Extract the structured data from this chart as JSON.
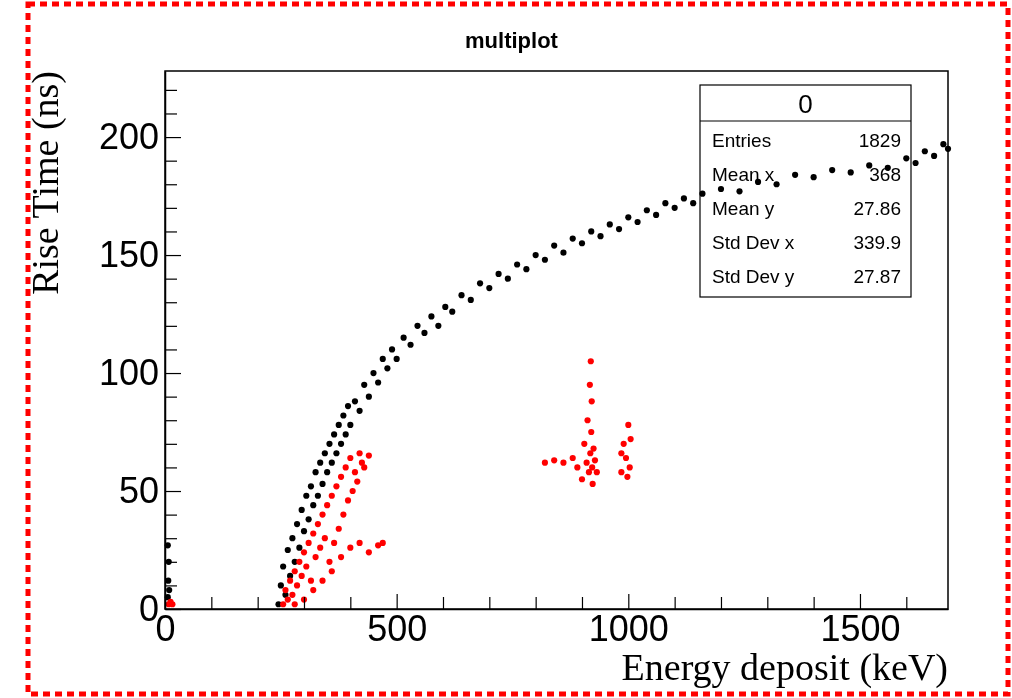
{
  "chart_data": {
    "type": "scatter",
    "title": "multiplot",
    "xlabel": "Energy deposit (keV)",
    "ylabel": "Rise Time (ns)",
    "xlim": [
      0,
      1690
    ],
    "ylim": [
      0,
      228
    ],
    "xticks": [
      0,
      {
        "value": 100,
        "label": null
      },
      {
        "value": 200,
        "label": null
      },
      {
        "value": 300,
        "label": null
      },
      {
        "value": 400,
        "label": null
      },
      500,
      {
        "value": 600,
        "label": null
      },
      {
        "value": 700,
        "label": null
      },
      {
        "value": 800,
        "label": null
      },
      {
        "value": 900,
        "label": null
      },
      1000,
      {
        "value": 1100,
        "label": null
      },
      {
        "value": 1200,
        "label": null
      },
      {
        "value": 1300,
        "label": null
      },
      {
        "value": 1400,
        "label": null
      },
      1500,
      {
        "value": 1600,
        "label": null
      }
    ],
    "yticks": [
      0,
      {
        "value": 10,
        "label": null
      },
      {
        "value": 20,
        "label": null
      },
      {
        "value": 30,
        "label": null
      },
      {
        "value": 40,
        "label": null
      },
      50,
      {
        "value": 60,
        "label": null
      },
      {
        "value": 70,
        "label": null
      },
      {
        "value": 80,
        "label": null
      },
      {
        "value": 90,
        "label": null
      },
      100,
      {
        "value": 110,
        "label": null
      },
      {
        "value": 120,
        "label": null
      },
      {
        "value": 130,
        "label": null
      },
      {
        "value": 140,
        "label": null
      },
      150,
      {
        "value": 160,
        "label": null
      },
      {
        "value": 170,
        "label": null
      },
      {
        "value": 180,
        "label": null
      },
      {
        "value": 190,
        "label": null
      },
      200,
      {
        "value": 210,
        "label": null
      },
      {
        "value": 220,
        "label": null
      }
    ],
    "grid": false,
    "marker": "circle",
    "annotations": [
      "0",
      "Entries",
      "1829",
      "Mean x",
      "368",
      "Mean y",
      "27.86",
      "Std Dev x",
      "339.9",
      "Std Dev y",
      "27.87"
    ],
    "series": [
      {
        "color": "#000000",
        "x": [
          6,
          7,
          8,
          6,
          9,
          245,
          250,
          255,
          260,
          265,
          270,
          275,
          280,
          285,
          290,
          295,
          300,
          305,
          310,
          315,
          320,
          325,
          330,
          335,
          340,
          345,
          350,
          355,
          360,
          365,
          370,
          375,
          380,
          385,
          390,
          395,
          400,
          410,
          420,
          430,
          440,
          450,
          460,
          470,
          480,
          490,
          500,
          515,
          530,
          545,
          560,
          575,
          590,
          605,
          620,
          640,
          660,
          680,
          700,
          720,
          740,
          760,
          780,
          800,
          820,
          840,
          860,
          880,
          900,
          920,
          940,
          960,
          980,
          1000,
          1020,
          1040,
          1060,
          1080,
          1100,
          1120,
          1140,
          1160,
          1200,
          1240,
          1280,
          1320,
          1360,
          1400,
          1440,
          1480,
          1520,
          1560,
          1600,
          1620,
          1640,
          1660,
          1680,
          1690
        ],
        "values": [
          5,
          12,
          20,
          27,
          8,
          2,
          10,
          18,
          6,
          25,
          14,
          30,
          20,
          36,
          26,
          42,
          33,
          48,
          38,
          52,
          44,
          58,
          48,
          62,
          53,
          66,
          58,
          70,
          62,
          74,
          66,
          78,
          70,
          82,
          74,
          86,
          78,
          88,
          84,
          95,
          90,
          100,
          96,
          106,
          102,
          110,
          106,
          115,
          112,
          120,
          117,
          124,
          120,
          128,
          126,
          133,
          131,
          138,
          136,
          142,
          140,
          146,
          144,
          150,
          148,
          154,
          151,
          157,
          155,
          160,
          158,
          163,
          161,
          166,
          164,
          169,
          167,
          172,
          170,
          174,
          172,
          176,
          178,
          177,
          181,
          180,
          184,
          183,
          186,
          185,
          188,
          187,
          191,
          189,
          194,
          192,
          197,
          195
        ]
      },
      {
        "color": "#ff0000",
        "x": [
          8,
          12,
          16,
          255,
          260,
          265,
          270,
          275,
          280,
          285,
          290,
          295,
          300,
          305,
          310,
          315,
          320,
          325,
          330,
          335,
          340,
          345,
          350,
          355,
          360,
          365,
          370,
          375,
          380,
          385,
          390,
          395,
          400,
          405,
          410,
          415,
          420,
          425,
          430,
          440,
          360,
          380,
          400,
          420,
          440,
          460,
          470,
          340,
          320,
          300,
          280,
          890,
          900,
          905,
          910,
          912,
          915,
          917,
          918,
          919,
          920,
          921,
          922,
          923,
          925,
          928,
          932,
          880,
          860,
          840,
          820,
          985,
          990,
          995,
          1000,
          1003,
          1005,
          985,
          998
        ],
        "values": [
          2,
          3,
          2,
          2,
          8,
          4,
          12,
          6,
          16,
          10,
          20,
          14,
          24,
          18,
          28,
          12,
          32,
          22,
          36,
          26,
          40,
          30,
          44,
          20,
          48,
          28,
          52,
          34,
          56,
          40,
          60,
          46,
          64,
          50,
          58,
          54,
          66,
          62,
          60,
          65,
          16,
          22,
          26,
          28,
          24,
          27,
          28,
          12,
          8,
          4,
          2,
          60,
          55,
          70,
          62,
          80,
          58,
          95,
          66,
          105,
          75,
          88,
          60,
          53,
          68,
          63,
          58,
          64,
          62,
          63,
          62,
          58,
          70,
          64,
          78,
          60,
          72,
          66,
          56
        ]
      }
    ]
  }
}
